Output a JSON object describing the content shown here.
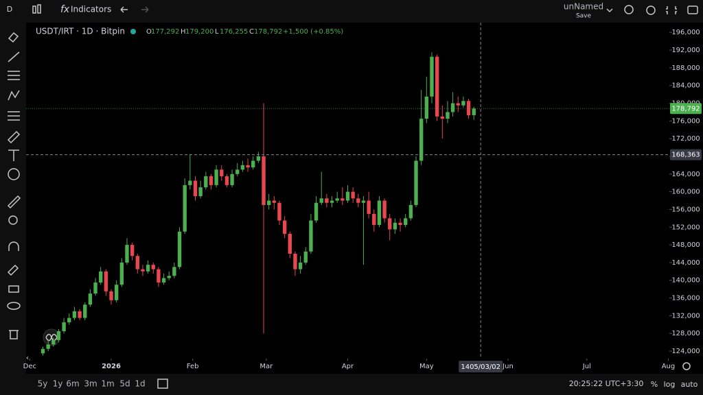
{
  "ui": {
    "interval": "D",
    "indicators": "Indicators",
    "layout_name": "unNamed",
    "save": "Save",
    "ranges": [
      "5y",
      "1y",
      "6m",
      "3m",
      "1m",
      "5d",
      "1d"
    ],
    "clock": "20:25:22 UTC+3:30",
    "percent": "%",
    "log": "log",
    "auto": "auto"
  },
  "chart_data": {
    "type": "candlestick",
    "title": "USDT/IRT · 1D · Bitpin",
    "ohlc": [
      {
        "key": "O",
        "text": "177,292"
      },
      {
        "key": "H",
        "text": "179,200"
      },
      {
        "key": "L",
        "text": "176,255"
      },
      {
        "key": "C",
        "text": "178,792"
      }
    ],
    "change": "+1,500 (+0.85%)",
    "up_color": "#4caf50",
    "down_color": "#e8474e",
    "open": [
      123500,
      124500,
      125500,
      126500,
      128500,
      130500,
      131500,
      133000,
      131500,
      134500,
      137000,
      139500,
      142000,
      137500,
      135500,
      139000,
      144000,
      148000,
      145500,
      142500,
      142000,
      143500,
      142500,
      139500,
      140500,
      141000,
      143000,
      151000,
      161500,
      162500,
      159000,
      161000,
      163500,
      161500,
      165000,
      163500,
      161500,
      164000,
      165000,
      166000,
      165500,
      167000,
      168000,
      157000,
      158000,
      157500,
      153500,
      150500,
      146000,
      142500,
      144000,
      146500,
      153500,
      157500,
      158500,
      157500,
      158000,
      158500,
      158000,
      160000,
      158500,
      157500,
      158000,
      155000,
      152500,
      158000,
      154000,
      151500,
      153000,
      152500,
      154000,
      157000,
      167000,
      176500,
      181500,
      190500,
      177000,
      176500,
      178000,
      180000,
      179500,
      180500,
      177292
    ],
    "high": [
      125000,
      126500,
      127000,
      129000,
      131500,
      132500,
      134000,
      133500,
      135000,
      138000,
      140500,
      143000,
      142500,
      138000,
      140000,
      145000,
      149500,
      148500,
      146000,
      143500,
      144500,
      144000,
      143000,
      141500,
      142000,
      144000,
      152000,
      163000,
      168500,
      163500,
      162500,
      164500,
      164000,
      166000,
      166000,
      164000,
      165000,
      166500,
      167000,
      167500,
      168000,
      169000,
      180000,
      159500,
      159000,
      158000,
      154500,
      151000,
      146500,
      145500,
      147500,
      155000,
      159000,
      164500,
      159500,
      159000,
      160000,
      161000,
      161500,
      161000,
      159500,
      159000,
      160000,
      156000,
      159000,
      158500,
      155000,
      154000,
      154000,
      155000,
      158000,
      168000,
      183000,
      186000,
      191500,
      191000,
      179500,
      180500,
      182500,
      181500,
      181500,
      181000,
      179200
    ],
    "low": [
      123000,
      124000,
      125000,
      126000,
      128000,
      130000,
      131000,
      131000,
      131000,
      134000,
      136500,
      139000,
      136500,
      134500,
      135000,
      138500,
      143500,
      144500,
      141500,
      141000,
      141500,
      141500,
      138500,
      139000,
      140000,
      140500,
      142500,
      150500,
      160500,
      158000,
      158500,
      160500,
      160500,
      161000,
      162500,
      161000,
      161000,
      163500,
      164500,
      164500,
      165000,
      166500,
      128000,
      156000,
      156000,
      152500,
      149500,
      145000,
      141000,
      141500,
      143500,
      146000,
      153000,
      157000,
      156500,
      156500,
      157500,
      157000,
      157500,
      157500,
      156500,
      143500,
      154000,
      151000,
      152000,
      153000,
      149000,
      150500,
      151000,
      152000,
      153500,
      156500,
      166000,
      175500,
      180000,
      176000,
      172000,
      175500,
      177000,
      178000,
      179000,
      176500,
      176255
    ],
    "close": [
      124500,
      125500,
      126500,
      128500,
      130500,
      131500,
      133000,
      131500,
      134500,
      137000,
      139500,
      142000,
      137500,
      135500,
      139000,
      144000,
      148000,
      145500,
      142500,
      142000,
      143500,
      142500,
      139500,
      140500,
      141000,
      143000,
      151000,
      161500,
      162500,
      159000,
      161000,
      163500,
      161500,
      165000,
      163500,
      161500,
      164000,
      165000,
      166000,
      165500,
      167000,
      168000,
      157000,
      158000,
      157500,
      153500,
      150500,
      146000,
      142500,
      144000,
      146500,
      153500,
      157500,
      158500,
      157500,
      158000,
      158500,
      158000,
      160000,
      158500,
      157500,
      158000,
      155000,
      152500,
      158000,
      154000,
      151500,
      153000,
      152500,
      154000,
      157000,
      167000,
      176500,
      181500,
      190500,
      177000,
      176500,
      178000,
      180000,
      179500,
      180500,
      177292,
      178792
    ],
    "xlim": [
      -3.2,
      119.2
    ],
    "xticks": [
      {
        "value": -2.5,
        "label": "Dec"
      },
      {
        "value": 13,
        "label": "2026"
      },
      {
        "value": 28.5,
        "label": "Feb"
      },
      {
        "value": 42.5,
        "label": "Mar"
      },
      {
        "value": 58,
        "label": "Apr"
      },
      {
        "value": 73,
        "label": "May"
      },
      {
        "value": 88.5,
        "label": "Jun"
      },
      {
        "value": 103.5,
        "label": "Jul"
      },
      {
        "value": 119,
        "label": "Aug"
      }
    ],
    "ylim": [
      122300,
      198200
    ],
    "yticks": [
      {
        "value": 124000,
        "label": "124,000"
      },
      {
        "value": 128000,
        "label": "128,000"
      },
      {
        "value": 132000,
        "label": "132,000"
      },
      {
        "value": 136000,
        "label": "136,000"
      },
      {
        "value": 140000,
        "label": "140,000"
      },
      {
        "value": 144000,
        "label": "144,000"
      },
      {
        "value": 148000,
        "label": "148,000"
      },
      {
        "value": 152000,
        "label": "152,000"
      },
      {
        "value": 156000,
        "label": "156,000"
      },
      {
        "value": 160000,
        "label": "160,000"
      },
      {
        "value": 164000,
        "label": "164,000"
      },
      {
        "value": 168000,
        "label": "168,000"
      },
      {
        "value": 172000,
        "label": "172,000"
      },
      {
        "value": 176000,
        "label": "176,000"
      },
      {
        "value": 180000,
        "label": "180,000"
      },
      {
        "value": 184000,
        "label": "184,000"
      },
      {
        "value": 188000,
        "label": "188,000"
      },
      {
        "value": 192000,
        "label": "192,000"
      },
      {
        "value": 196000,
        "label": "196,000"
      }
    ],
    "last_price": {
      "value": 178792,
      "label": "178,792"
    },
    "crosshair": {
      "x": 83.3,
      "x_label": "1405/03/02",
      "y": {
        "value": 168363,
        "label": "168,363"
      }
    },
    "grid": false
  }
}
